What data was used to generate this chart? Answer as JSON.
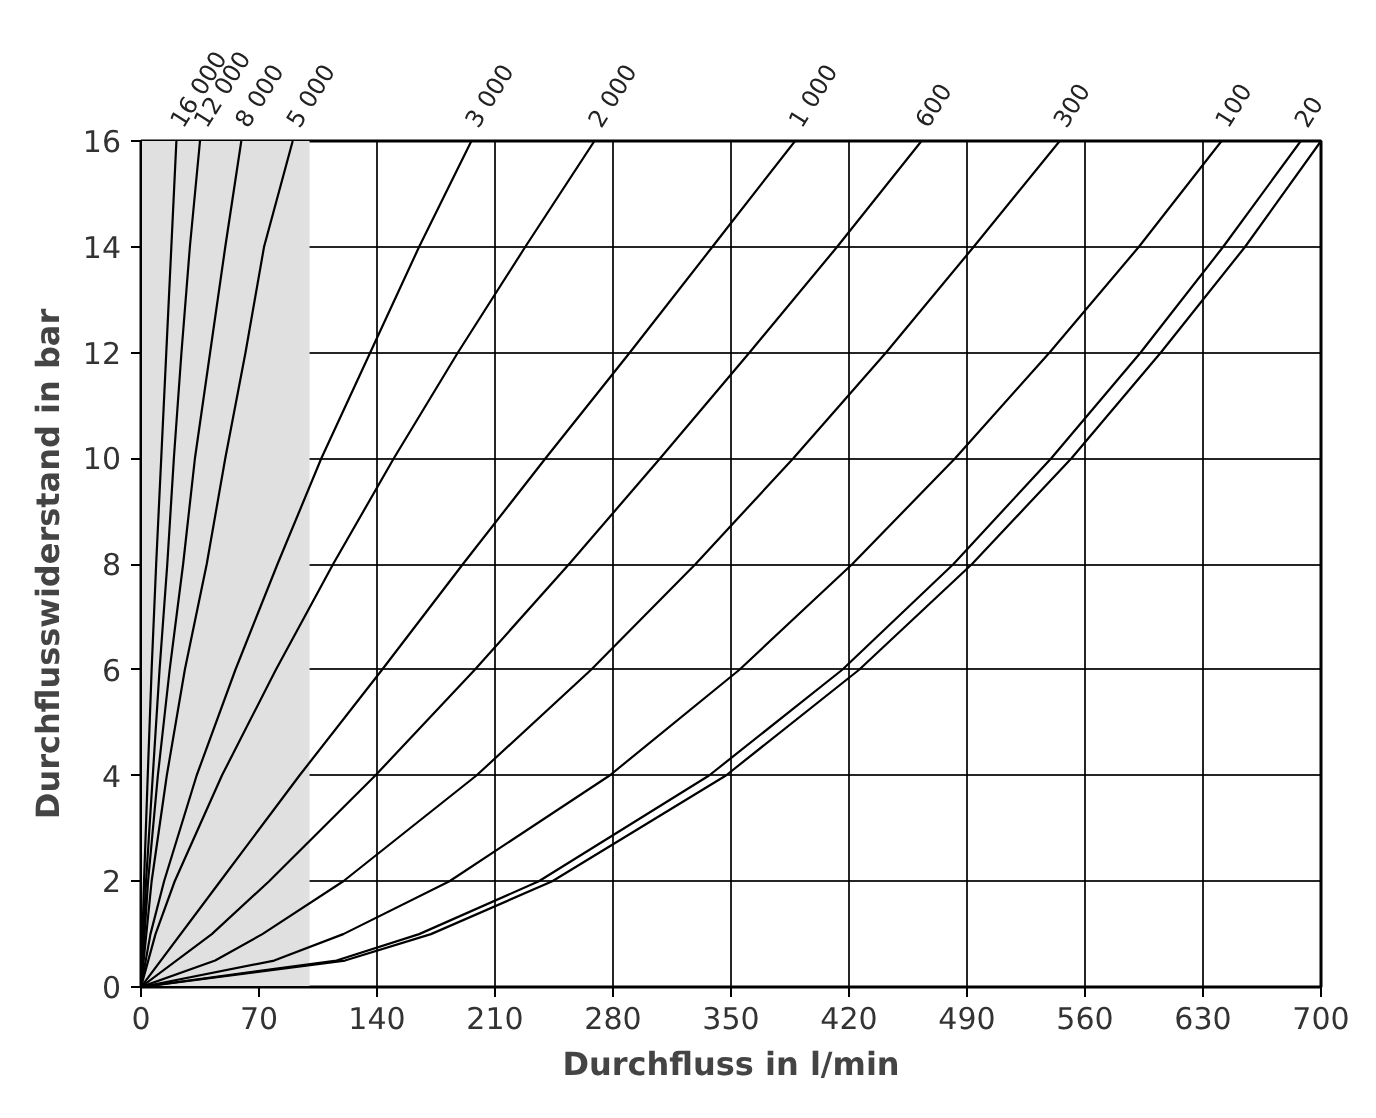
{
  "chart_data": {
    "type": "line",
    "xlabel": "Durchfluss in l/min",
    "ylabel": "Durchflusswiderstand in bar",
    "xlim": [
      0,
      700
    ],
    "ylim": [
      0,
      16
    ],
    "xticks": [
      0,
      70,
      140,
      210,
      280,
      350,
      420,
      490,
      560,
      630,
      700
    ],
    "yticks": [
      0,
      2,
      4,
      6,
      8,
      10,
      12,
      14,
      16
    ],
    "grid": true,
    "marker": "none",
    "line_style": "solid",
    "bands": [
      {
        "axis": "x",
        "from": 0,
        "to": 100,
        "label": null,
        "color": "#e0e0e0"
      }
    ],
    "series": [
      {
        "name": "16 000",
        "color": "#000000",
        "x": [
          0,
          1.8,
          4,
          6.3,
          9,
          12,
          15,
          18,
          21
        ],
        "values": [
          0,
          2,
          4,
          6,
          8,
          10,
          12,
          14,
          16
        ]
      },
      {
        "name": "12 000",
        "color": "#000000",
        "x": [
          0,
          3,
          7,
          11,
          15.6,
          19.5,
          24,
          29,
          35
        ],
        "values": [
          0,
          2,
          4,
          6,
          8,
          10,
          12,
          14,
          16
        ]
      },
      {
        "name": "8 000",
        "color": "#000000",
        "x": [
          0,
          4.2,
          10,
          17,
          25,
          32,
          41,
          50,
          59.5
        ],
        "values": [
          0,
          2,
          4,
          6,
          8,
          10,
          12,
          14,
          16
        ]
      },
      {
        "name": "5 000",
        "color": "#000000",
        "x": [
          0,
          6.3,
          15.3,
          26,
          39,
          50,
          62,
          73,
          90
        ],
        "values": [
          0,
          2,
          4,
          6,
          8,
          10,
          12,
          14,
          16
        ]
      },
      {
        "name": "3 000",
        "color": "#000000",
        "x": [
          0,
          5.6,
          13.7,
          33,
          56,
          81,
          107,
          136,
          165,
          196
        ],
        "values": [
          0,
          1,
          2,
          4,
          6,
          8,
          10,
          12,
          14,
          16
        ]
      },
      {
        "name": "2 000",
        "color": "#000000",
        "x": [
          0,
          8.6,
          20,
          48,
          80,
          114,
          150,
          188,
          228,
          269
        ],
        "values": [
          0,
          1,
          2,
          4,
          6,
          8,
          10,
          12,
          14,
          16
        ]
      },
      {
        "name": "1 000",
        "color": "#000000",
        "x": [
          0,
          47,
          94,
          143,
          191,
          240,
          290,
          339,
          388
        ],
        "values": [
          0,
          2,
          4,
          6,
          8,
          10,
          12,
          14,
          16
        ]
      },
      {
        "name": "600",
        "color": "#000000",
        "x": [
          0,
          42,
          76,
          139,
          198,
          254,
          308,
          361,
          413,
          463
        ],
        "values": [
          0,
          1,
          2,
          4,
          6,
          8,
          10,
          12,
          14,
          16
        ]
      },
      {
        "name": "300",
        "color": "#000000",
        "x": [
          0,
          44,
          72,
          120,
          199,
          267,
          329,
          387,
          442,
          494,
          545
        ],
        "values": [
          0,
          0.5,
          1,
          2,
          4,
          6,
          8,
          10,
          12,
          14,
          16
        ]
      },
      {
        "name": "100",
        "color": "#000000",
        "x": [
          0,
          79,
          120,
          183,
          278,
          355,
          422,
          483,
          539,
          592,
          641
        ],
        "values": [
          0,
          0.5,
          1,
          2,
          4,
          6,
          8,
          10,
          12,
          14,
          16
        ]
      },
      {
        "name": "20",
        "color": "#000000",
        "x": [
          0,
          116,
          165,
          236,
          337,
          416,
          482,
          540,
          593,
          642,
          688
        ],
        "values": [
          0,
          0.5,
          1,
          2,
          4,
          6,
          8,
          10,
          12,
          14,
          16
        ]
      },
      {
        "color": "#000000",
        "x": [
          0,
          121,
          172,
          244,
          347,
          426,
          493,
          552,
          605,
          655,
          700
        ],
        "values": [
          0,
          0.5,
          1,
          2,
          4,
          6,
          8,
          10,
          12,
          14,
          16
        ]
      }
    ]
  }
}
